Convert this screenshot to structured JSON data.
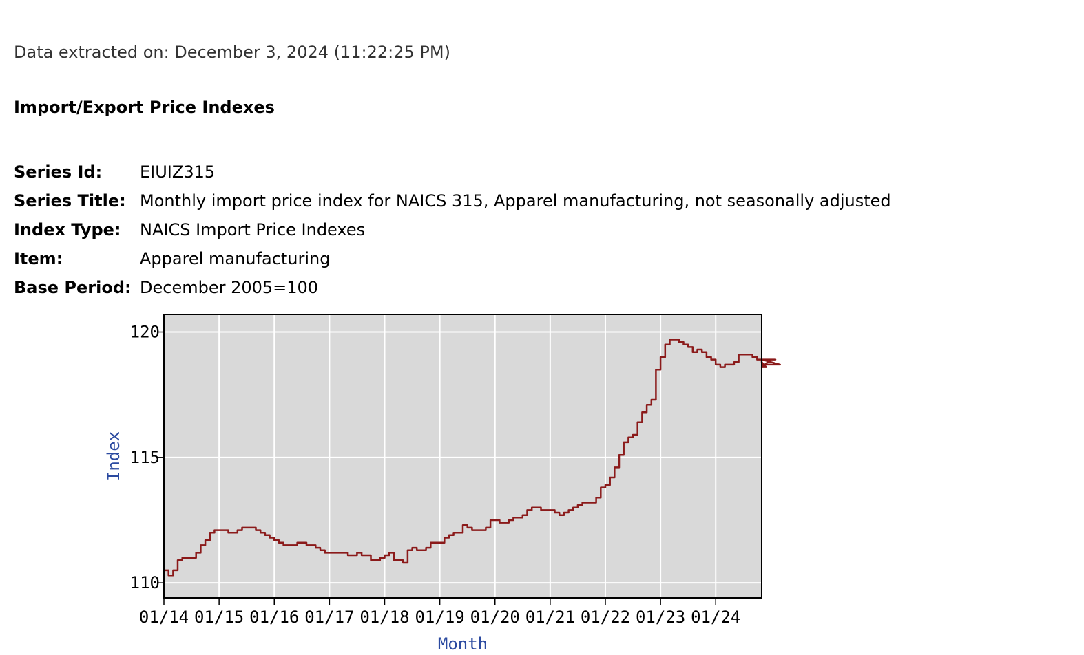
{
  "extracted_text": "Data extracted on: December 3, 2024 (11:22:25 PM)",
  "heading": "Import/Export Price Indexes",
  "meta": [
    {
      "key": "Series Id:",
      "value": "EIUIZ315"
    },
    {
      "key": "Series Title:",
      "value": "Monthly import price index for NAICS 315, Apparel manufacturing, not seasonally adjusted"
    },
    {
      "key": "Index Type:",
      "value": "NAICS Import Price Indexes"
    },
    {
      "key": "Item:",
      "value": "Apparel manufacturing"
    },
    {
      "key": "Base Period:",
      "value": "December 2005=100"
    }
  ],
  "colors": {
    "line": "#8b1a1a",
    "plot_bg": "#d9d9d9",
    "grid": "#ffffff",
    "axis_label": "#2b4aa0"
  },
  "chart_data": {
    "type": "line",
    "title": "",
    "xlabel": "Month",
    "ylabel": "Index",
    "ylim": [
      109.4,
      120.7
    ],
    "xlim_months": [
      0,
      130
    ],
    "yticks": [
      110,
      115,
      120
    ],
    "xticks": [
      {
        "label": "01/14",
        "month": 0
      },
      {
        "label": "01/15",
        "month": 12
      },
      {
        "label": "01/16",
        "month": 24
      },
      {
        "label": "01/17",
        "month": 36
      },
      {
        "label": "01/18",
        "month": 48
      },
      {
        "label": "01/19",
        "month": 60
      },
      {
        "label": "01/20",
        "month": 72
      },
      {
        "label": "01/21",
        "month": 84
      },
      {
        "label": "01/22",
        "month": 96
      },
      {
        "label": "01/23",
        "month": 108
      },
      {
        "label": "01/24",
        "month": 120
      }
    ],
    "grid": true,
    "start": "01/14",
    "values": [
      110.5,
      110.3,
      110.5,
      110.9,
      111.0,
      111.0,
      111.0,
      111.2,
      111.5,
      111.7,
      112.0,
      112.1,
      112.1,
      112.1,
      112.0,
      112.0,
      112.1,
      112.2,
      112.2,
      112.2,
      112.1,
      112.0,
      111.9,
      111.8,
      111.7,
      111.6,
      111.5,
      111.5,
      111.5,
      111.6,
      111.6,
      111.5,
      111.5,
      111.4,
      111.3,
      111.2,
      111.2,
      111.2,
      111.2,
      111.2,
      111.1,
      111.1,
      111.2,
      111.1,
      111.1,
      110.9,
      110.9,
      111.0,
      111.1,
      111.2,
      110.9,
      110.9,
      110.8,
      111.3,
      111.4,
      111.3,
      111.3,
      111.4,
      111.6,
      111.6,
      111.6,
      111.8,
      111.9,
      112.0,
      112.0,
      112.3,
      112.2,
      112.1,
      112.1,
      112.1,
      112.2,
      112.5,
      112.5,
      112.4,
      112.4,
      112.5,
      112.6,
      112.6,
      112.7,
      112.9,
      113.0,
      113.0,
      112.9,
      112.9,
      112.9,
      112.8,
      112.7,
      112.8,
      112.9,
      113.0,
      113.1,
      113.2,
      113.2,
      113.2,
      113.4,
      113.8,
      113.9,
      114.2,
      114.6,
      115.1,
      115.6,
      115.8,
      115.9,
      116.4,
      116.8,
      117.1,
      117.3,
      118.5,
      119.0,
      119.5,
      119.7,
      119.7,
      119.6,
      119.5,
      119.4,
      119.2,
      119.3,
      119.2,
      119.0,
      118.9,
      118.7,
      118.6,
      118.7,
      118.7,
      118.8,
      119.1,
      119.1,
      119.1,
      119.0,
      118.9,
      118.8,
      118.6,
      118.9,
      118.9,
      118.7
    ]
  }
}
